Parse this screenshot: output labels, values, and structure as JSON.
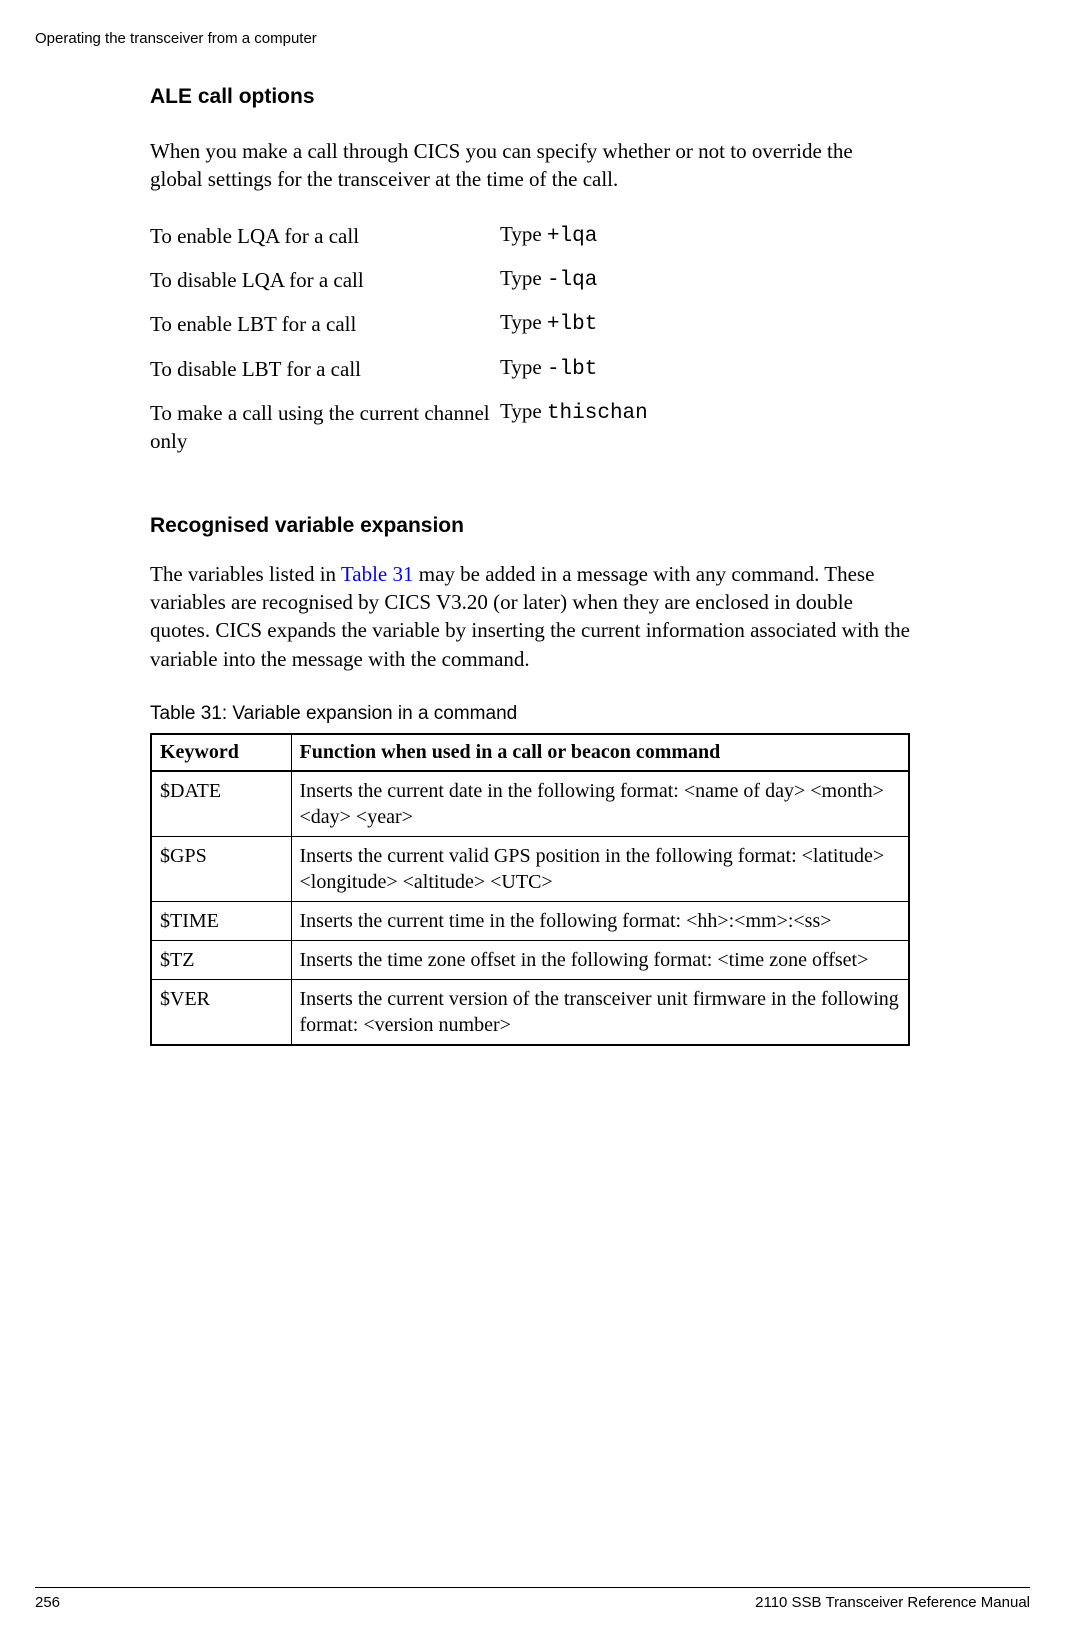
{
  "header": {
    "text": "Operating the transceiver from a computer"
  },
  "section1": {
    "heading": "ALE call options",
    "intro": "When you make a call through CICS you can specify whether or not to override the global settings for the transceiver at the time of the call.",
    "options": [
      {
        "label": "To enable LQA for a call",
        "prefix": "Type ",
        "code": "+lqa"
      },
      {
        "label": "To disable LQA for a call",
        "prefix": "Type ",
        "code": "-lqa"
      },
      {
        "label": "To enable LBT for a call",
        "prefix": "Type ",
        "code": "+lbt"
      },
      {
        "label": "To disable LBT for a call",
        "prefix": "Type ",
        "code": "-lbt"
      },
      {
        "label": "To make a call using the current channel only",
        "prefix": "Type ",
        "code": "thischan"
      }
    ]
  },
  "section2": {
    "heading": "Recognised variable expansion",
    "para_before_link": "The variables listed in ",
    "link_text": "Table 31",
    "para_after_link": " may be added in a message with any command. These variables are recognised by CICS V3.20 (or later) when they are enclosed in double quotes. CICS expands the variable by inserting the current information associated with the variable into the message with the command."
  },
  "table": {
    "caption": "Table 31:    Variable expansion in a command",
    "headers": [
      "Keyword",
      "Function when used in a call or beacon command"
    ],
    "rows": [
      [
        "$DATE",
        "Inserts the current date in the following format: <name of day> <month> <day> <year>"
      ],
      [
        "$GPS",
        "Inserts the current valid GPS position in the following format: <latitude> <longitude> <altitude> <UTC>"
      ],
      [
        "$TIME",
        "Inserts the current time in the following format: <hh>:<mm>:<ss>"
      ],
      [
        "$TZ",
        "Inserts the time zone offset in the following format: <time zone offset>"
      ],
      [
        "$VER",
        "Inserts the current version of the transceiver unit firmware in the following format: <version number>"
      ]
    ]
  },
  "footer": {
    "page_number": "256",
    "doc_title": "2110 SSB Transceiver Reference Manual"
  }
}
